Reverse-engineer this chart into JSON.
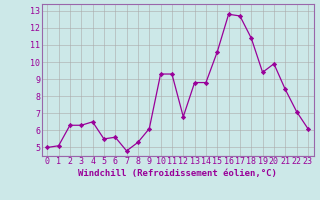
{
  "x": [
    0,
    1,
    2,
    3,
    4,
    5,
    6,
    7,
    8,
    9,
    10,
    11,
    12,
    13,
    14,
    15,
    16,
    17,
    18,
    19,
    20,
    21,
    22,
    23
  ],
  "y": [
    5.0,
    5.1,
    6.3,
    6.3,
    6.5,
    5.5,
    5.6,
    4.8,
    5.3,
    6.1,
    9.3,
    9.3,
    6.8,
    8.8,
    8.8,
    10.6,
    12.8,
    12.7,
    11.4,
    9.4,
    9.9,
    8.4,
    7.1,
    6.1
  ],
  "line_color": "#990099",
  "marker": "D",
  "marker_size": 2.2,
  "bg_color": "#cce8e8",
  "grid_color": "#aaaaaa",
  "xlabel": "Windchill (Refroidissement éolien,°C)",
  "xtick_labels": [
    "0",
    "1",
    "2",
    "3",
    "4",
    "5",
    "6",
    "7",
    "8",
    "9",
    "10",
    "11",
    "12",
    "13",
    "14",
    "15",
    "16",
    "17",
    "18",
    "19",
    "20",
    "21",
    "22",
    "23"
  ],
  "ytick_labels": [
    "5",
    "6",
    "7",
    "8",
    "9",
    "10",
    "11",
    "12",
    "13"
  ],
  "ytick_vals": [
    5,
    6,
    7,
    8,
    9,
    10,
    11,
    12,
    13
  ],
  "ylim": [
    4.5,
    13.4
  ],
  "xlim": [
    -0.5,
    23.5
  ],
  "xlabel_fontsize": 6.5,
  "tick_fontsize": 6.0,
  "border_color": "#9966aa"
}
